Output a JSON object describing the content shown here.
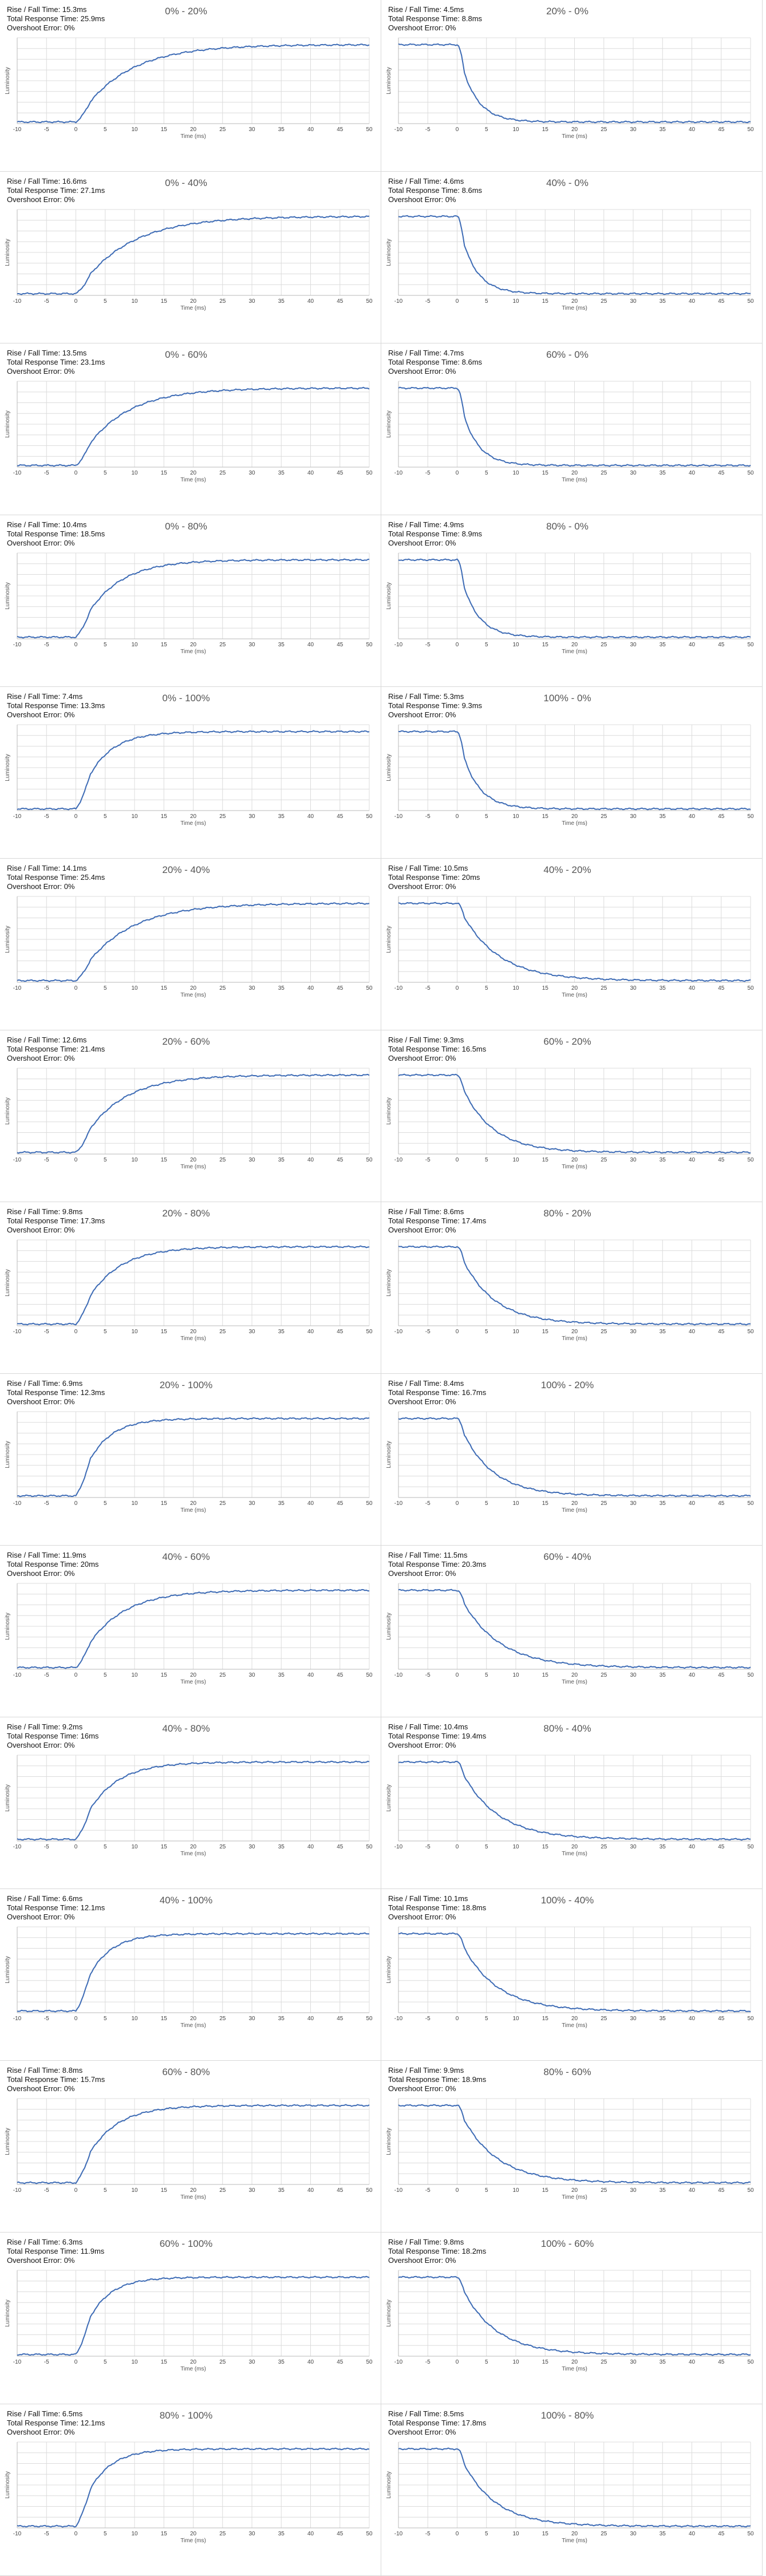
{
  "axis": {
    "xlabel": "Time (ms)",
    "ylabel": "Luminosity",
    "xticks": [
      -10,
      -5,
      0,
      5,
      10,
      15,
      20,
      25,
      30,
      35,
      40,
      45,
      50
    ]
  },
  "labels": {
    "rise_fall": "Rise / Fall Time: ",
    "total": "Total Response Time: ",
    "overshoot": "Overshoot Error: "
  },
  "colors": {
    "line": "#3d6bb5",
    "grid": "#dcdcdc",
    "axis": "#b8b8b8"
  },
  "chart_data": [
    {
      "type": "line",
      "title": "0% - 20%",
      "rise_fall": "15.3ms",
      "total": "25.9ms",
      "overshoot": "0%",
      "direction": "rise",
      "settle_ms": 25.9,
      "x_range": [
        -10,
        50
      ]
    },
    {
      "type": "line",
      "title": "20% - 0%",
      "rise_fall": "4.5ms",
      "total": "8.8ms",
      "overshoot": "0%",
      "direction": "fall",
      "settle_ms": 8.8,
      "x_range": [
        -10,
        50
      ]
    },
    {
      "type": "line",
      "title": "0% - 40%",
      "rise_fall": "16.6ms",
      "total": "27.1ms",
      "overshoot": "0%",
      "direction": "rise",
      "settle_ms": 27.1,
      "x_range": [
        -10,
        50
      ]
    },
    {
      "type": "line",
      "title": "40% - 0%",
      "rise_fall": "4.6ms",
      "total": "8.6ms",
      "overshoot": "0%",
      "direction": "fall",
      "settle_ms": 8.6,
      "x_range": [
        -10,
        50
      ]
    },
    {
      "type": "line",
      "title": "0% - 60%",
      "rise_fall": "13.5ms",
      "total": "23.1ms",
      "overshoot": "0%",
      "direction": "rise",
      "settle_ms": 23.1,
      "x_range": [
        -10,
        50
      ]
    },
    {
      "type": "line",
      "title": "60% - 0%",
      "rise_fall": "4.7ms",
      "total": "8.6ms",
      "overshoot": "0%",
      "direction": "fall",
      "settle_ms": 8.6,
      "x_range": [
        -10,
        50
      ]
    },
    {
      "type": "line",
      "title": "0% - 80%",
      "rise_fall": "10.4ms",
      "total": "18.5ms",
      "overshoot": "0%",
      "direction": "rise",
      "settle_ms": 18.5,
      "x_range": [
        -10,
        50
      ]
    },
    {
      "type": "line",
      "title": "80% - 0%",
      "rise_fall": "4.9ms",
      "total": "8.9ms",
      "overshoot": "0%",
      "direction": "fall",
      "settle_ms": 8.9,
      "x_range": [
        -10,
        50
      ]
    },
    {
      "type": "line",
      "title": "0% - 100%",
      "rise_fall": "7.4ms",
      "total": "13.3ms",
      "overshoot": "0%",
      "direction": "rise",
      "settle_ms": 13.3,
      "x_range": [
        -10,
        50
      ]
    },
    {
      "type": "line",
      "title": "100% - 0%",
      "rise_fall": "5.3ms",
      "total": "9.3ms",
      "overshoot": "0%",
      "direction": "fall",
      "settle_ms": 9.3,
      "x_range": [
        -10,
        50
      ]
    },
    {
      "type": "line",
      "title": "20% - 40%",
      "rise_fall": "14.1ms",
      "total": "25.4ms",
      "overshoot": "0%",
      "direction": "rise",
      "settle_ms": 25.4,
      "x_range": [
        -10,
        50
      ]
    },
    {
      "type": "line",
      "title": "40% - 20%",
      "rise_fall": "10.5ms",
      "total": "20ms",
      "overshoot": "0%",
      "direction": "fall",
      "settle_ms": 20,
      "x_range": [
        -10,
        50
      ]
    },
    {
      "type": "line",
      "title": "20% - 60%",
      "rise_fall": "12.6ms",
      "total": "21.4ms",
      "overshoot": "0%",
      "direction": "rise",
      "settle_ms": 21.4,
      "x_range": [
        -10,
        50
      ]
    },
    {
      "type": "line",
      "title": "60% - 20%",
      "rise_fall": "9.3ms",
      "total": "16.5ms",
      "overshoot": "0%",
      "direction": "fall",
      "settle_ms": 16.5,
      "x_range": [
        -10,
        50
      ]
    },
    {
      "type": "line",
      "title": "20% - 80%",
      "rise_fall": "9.8ms",
      "total": "17.3ms",
      "overshoot": "0%",
      "direction": "rise",
      "settle_ms": 17.3,
      "x_range": [
        -10,
        50
      ]
    },
    {
      "type": "line",
      "title": "80% - 20%",
      "rise_fall": "8.6ms",
      "total": "17.4ms",
      "overshoot": "0%",
      "direction": "fall",
      "settle_ms": 17.4,
      "x_range": [
        -10,
        50
      ]
    },
    {
      "type": "line",
      "title": "20% - 100%",
      "rise_fall": "6.9ms",
      "total": "12.3ms",
      "overshoot": "0%",
      "direction": "rise",
      "settle_ms": 12.3,
      "x_range": [
        -10,
        50
      ]
    },
    {
      "type": "line",
      "title": "100% - 20%",
      "rise_fall": "8.4ms",
      "total": "16.7ms",
      "overshoot": "0%",
      "direction": "fall",
      "settle_ms": 16.7,
      "x_range": [
        -10,
        50
      ]
    },
    {
      "type": "line",
      "title": "40% - 60%",
      "rise_fall": "11.9ms",
      "total": "20ms",
      "overshoot": "0%",
      "direction": "rise",
      "settle_ms": 20,
      "x_range": [
        -10,
        50
      ]
    },
    {
      "type": "line",
      "title": "60% - 40%",
      "rise_fall": "11.5ms",
      "total": "20.3ms",
      "overshoot": "0%",
      "direction": "fall",
      "settle_ms": 20.3,
      "x_range": [
        -10,
        50
      ]
    },
    {
      "type": "line",
      "title": "40% - 80%",
      "rise_fall": "9.2ms",
      "total": "16ms",
      "overshoot": "0%",
      "direction": "rise",
      "settle_ms": 16,
      "x_range": [
        -10,
        50
      ]
    },
    {
      "type": "line",
      "title": "80% - 40%",
      "rise_fall": "10.4ms",
      "total": "19.4ms",
      "overshoot": "0%",
      "direction": "fall",
      "settle_ms": 19.4,
      "x_range": [
        -10,
        50
      ]
    },
    {
      "type": "line",
      "title": "40% - 100%",
      "rise_fall": "6.6ms",
      "total": "12.1ms",
      "overshoot": "0%",
      "direction": "rise",
      "settle_ms": 12.1,
      "x_range": [
        -10,
        50
      ]
    },
    {
      "type": "line",
      "title": "100% - 40%",
      "rise_fall": "10.1ms",
      "total": "18.8ms",
      "overshoot": "0%",
      "direction": "fall",
      "settle_ms": 18.8,
      "x_range": [
        -10,
        50
      ]
    },
    {
      "type": "line",
      "title": "60% - 80%",
      "rise_fall": "8.8ms",
      "total": "15.7ms",
      "overshoot": "0%",
      "direction": "rise",
      "settle_ms": 15.7,
      "x_range": [
        -10,
        50
      ]
    },
    {
      "type": "line",
      "title": "80% - 60%",
      "rise_fall": "9.9ms",
      "total": "18.9ms",
      "overshoot": "0%",
      "direction": "fall",
      "settle_ms": 18.9,
      "x_range": [
        -10,
        50
      ]
    },
    {
      "type": "line",
      "title": "60% - 100%",
      "rise_fall": "6.3ms",
      "total": "11.9ms",
      "overshoot": "0%",
      "direction": "rise",
      "settle_ms": 11.9,
      "x_range": [
        -10,
        50
      ]
    },
    {
      "type": "line",
      "title": "100% - 60%",
      "rise_fall": "9.8ms",
      "total": "18.2ms",
      "overshoot": "0%",
      "direction": "fall",
      "settle_ms": 18.2,
      "x_range": [
        -10,
        50
      ]
    },
    {
      "type": "line",
      "title": "80% - 100%",
      "rise_fall": "6.5ms",
      "total": "12.1ms",
      "overshoot": "0%",
      "direction": "rise",
      "settle_ms": 12.1,
      "x_range": [
        -10,
        50
      ]
    },
    {
      "type": "line",
      "title": "100% - 80%",
      "rise_fall": "8.5ms",
      "total": "17.8ms",
      "overshoot": "0%",
      "direction": "fall",
      "settle_ms": 17.8,
      "x_range": [
        -10,
        50
      ]
    }
  ]
}
